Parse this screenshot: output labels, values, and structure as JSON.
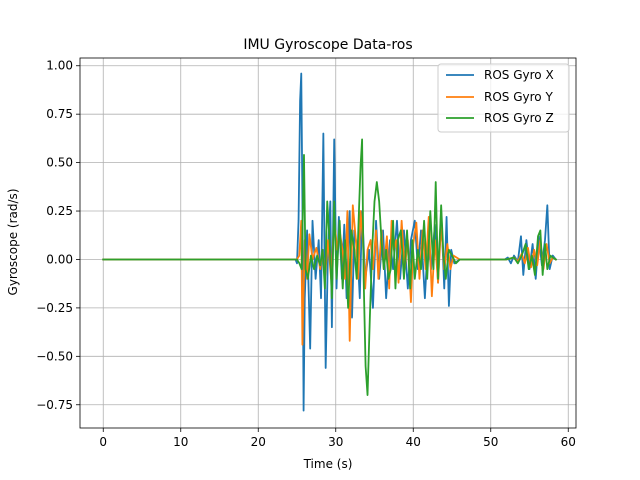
{
  "chart_data": {
    "type": "line",
    "title": "IMU Gyroscope Data-ros",
    "xlabel": "Time (s)",
    "ylabel": "Gyroscope (rad/s)",
    "xlim": [
      -3,
      61
    ],
    "ylim": [
      -0.87,
      1.04
    ],
    "xticks": [
      0,
      10,
      20,
      30,
      40,
      50,
      60
    ],
    "xtick_labels": [
      "0",
      "10",
      "20",
      "30",
      "40",
      "50",
      "60"
    ],
    "yticks": [
      -0.75,
      -0.5,
      -0.25,
      0.0,
      0.25,
      0.5,
      0.75,
      1.0
    ],
    "ytick_labels": [
      "−0.75",
      "−0.50",
      "−0.25",
      "0.00",
      "0.25",
      "0.50",
      "0.75",
      "1.00"
    ],
    "grid": true,
    "legend_position": "top-right",
    "series": [
      {
        "name": "ROS Gyro X",
        "color": "#1f77b4",
        "points": [
          [
            0,
            0
          ],
          [
            24.8,
            0
          ],
          [
            25.0,
            -0.02
          ],
          [
            25.2,
            0.2
          ],
          [
            25.4,
            0.82
          ],
          [
            25.55,
            0.96
          ],
          [
            25.7,
            0.3
          ],
          [
            25.85,
            -0.78
          ],
          [
            26.0,
            -0.2
          ],
          [
            26.3,
            0.15
          ],
          [
            26.7,
            -0.46
          ],
          [
            27.0,
            0.2
          ],
          [
            27.4,
            -0.1
          ],
          [
            27.8,
            0.1
          ],
          [
            28.1,
            -0.2
          ],
          [
            28.4,
            0.65
          ],
          [
            28.7,
            -0.56
          ],
          [
            29.0,
            0.05
          ],
          [
            29.3,
            0.3
          ],
          [
            29.5,
            -0.35
          ],
          [
            29.8,
            0.62
          ],
          [
            30.1,
            -0.15
          ],
          [
            30.4,
            0.22
          ],
          [
            30.8,
            -0.1
          ],
          [
            31.1,
            0.18
          ],
          [
            31.4,
            -0.2
          ],
          [
            31.8,
            0.25
          ],
          [
            32.1,
            -0.3
          ],
          [
            32.4,
            0.15
          ],
          [
            32.8,
            0.05
          ],
          [
            33.1,
            -0.2
          ],
          [
            33.4,
            0.25
          ],
          [
            33.8,
            -0.1
          ],
          [
            34.3,
            0.05
          ],
          [
            34.8,
            -0.25
          ],
          [
            35.2,
            0.2
          ],
          [
            35.6,
            -0.1
          ],
          [
            36.1,
            0.15
          ],
          [
            36.5,
            -0.2
          ],
          [
            37.0,
            0.1
          ],
          [
            37.4,
            -0.05
          ],
          [
            37.9,
            0.2
          ],
          [
            38.3,
            -0.1
          ],
          [
            38.8,
            0.15
          ],
          [
            39.3,
            -0.15
          ],
          [
            39.7,
            0.1
          ],
          [
            40.2,
            0.2
          ],
          [
            40.6,
            -0.05
          ],
          [
            41.0,
            0.15
          ],
          [
            41.5,
            -0.2
          ],
          [
            41.9,
            0.1
          ],
          [
            42.3,
            -0.05
          ],
          [
            42.8,
            0.18
          ],
          [
            43.2,
            -0.12
          ],
          [
            43.6,
            0.25
          ],
          [
            44.0,
            -0.15
          ],
          [
            44.3,
            0.22
          ],
          [
            44.6,
            -0.24
          ],
          [
            44.9,
            0.05
          ],
          [
            45.3,
            -0.02
          ],
          [
            46,
            0
          ],
          [
            51.8,
            0
          ],
          [
            52.2,
            0.01
          ],
          [
            52.6,
            -0.02
          ],
          [
            53.0,
            0.02
          ],
          [
            53.5,
            -0.01
          ],
          [
            53.9,
            0.12
          ],
          [
            54.2,
            -0.08
          ],
          [
            54.6,
            0.1
          ],
          [
            55.0,
            -0.05
          ],
          [
            55.4,
            0.08
          ],
          [
            55.8,
            -0.1
          ],
          [
            56.2,
            0.12
          ],
          [
            56.6,
            -0.03
          ],
          [
            57.0,
            0.1
          ],
          [
            57.3,
            0.28
          ],
          [
            57.6,
            -0.05
          ],
          [
            58.0,
            0.02
          ],
          [
            58.4,
            0
          ]
        ]
      },
      {
        "name": "ROS Gyro Y",
        "color": "#ff7f0e",
        "points": [
          [
            0,
            0
          ],
          [
            25.0,
            0
          ],
          [
            25.3,
            0.02
          ],
          [
            25.55,
            0.2
          ],
          [
            25.7,
            -0.44
          ],
          [
            26.0,
            0.1
          ],
          [
            26.3,
            -0.1
          ],
          [
            26.6,
            0.13
          ],
          [
            27.0,
            0
          ],
          [
            27.5,
            0.06
          ],
          [
            28.0,
            -0.05
          ],
          [
            28.3,
            0.05
          ],
          [
            28.6,
            -0.1
          ],
          [
            29.0,
            0.1
          ],
          [
            29.4,
            -0.1
          ],
          [
            29.8,
            0.2
          ],
          [
            30.2,
            0.05
          ],
          [
            30.5,
            0.15
          ],
          [
            30.9,
            0.04
          ],
          [
            31.2,
            -0.1
          ],
          [
            31.5,
            0.25
          ],
          [
            31.8,
            -0.42
          ],
          [
            32.2,
            0.28
          ],
          [
            32.6,
            0.1
          ],
          [
            32.9,
            -0.1
          ],
          [
            33.2,
            0.25
          ],
          [
            33.5,
            0.1
          ],
          [
            33.8,
            -0.15
          ],
          [
            34.1,
            0.05
          ],
          [
            34.5,
            0.1
          ],
          [
            34.8,
            -0.05
          ],
          [
            35.2,
            0.15
          ],
          [
            35.5,
            -0.1
          ],
          [
            35.9,
            0.15
          ],
          [
            36.2,
            -0.05
          ],
          [
            36.6,
            0.12
          ],
          [
            36.9,
            -0.15
          ],
          [
            37.2,
            0.2
          ],
          [
            37.5,
            0.05
          ],
          [
            37.8,
            0.1
          ],
          [
            38.1,
            -0.12
          ],
          [
            38.5,
            0.2
          ],
          [
            38.9,
            -0.05
          ],
          [
            39.3,
            0.1
          ],
          [
            39.7,
            -0.22
          ],
          [
            40.0,
            0.08
          ],
          [
            40.4,
            0.19
          ],
          [
            40.8,
            -0.1
          ],
          [
            41.2,
            0.15
          ],
          [
            41.6,
            -0.05
          ],
          [
            42.0,
            0.22
          ],
          [
            42.4,
            -0.19
          ],
          [
            42.8,
            0.1
          ],
          [
            43.2,
            -0.12
          ],
          [
            43.6,
            0.18
          ],
          [
            44.0,
            -0.05
          ],
          [
            44.4,
            0.08
          ],
          [
            44.8,
            -0.05
          ],
          [
            45.2,
            0.02
          ],
          [
            46,
            0
          ],
          [
            52,
            0
          ],
          [
            53.0,
            0.01
          ],
          [
            53.5,
            -0.01
          ],
          [
            54.0,
            0.03
          ],
          [
            54.4,
            -0.02
          ],
          [
            54.8,
            0.06
          ],
          [
            55.2,
            -0.04
          ],
          [
            55.6,
            0.05
          ],
          [
            56.0,
            -0.03
          ],
          [
            56.4,
            0.1
          ],
          [
            56.8,
            -0.05
          ],
          [
            57.2,
            0.08
          ],
          [
            57.6,
            -0.02
          ],
          [
            58.0,
            0.01
          ],
          [
            58.4,
            0
          ]
        ]
      },
      {
        "name": "ROS Gyro Z",
        "color": "#2ca02c",
        "points": [
          [
            0,
            0
          ],
          [
            25.0,
            0
          ],
          [
            25.3,
            -0.02
          ],
          [
            25.6,
            -0.05
          ],
          [
            25.9,
            0.54
          ],
          [
            26.1,
            -0.05
          ],
          [
            26.4,
            -0.1
          ],
          [
            26.8,
            0.02
          ],
          [
            27.2,
            -0.05
          ],
          [
            27.6,
            0.02
          ],
          [
            28.0,
            -0.03
          ],
          [
            28.3,
            0.05
          ],
          [
            28.6,
            -0.15
          ],
          [
            28.9,
            0.3
          ],
          [
            29.2,
            0.1
          ],
          [
            29.5,
            -0.2
          ],
          [
            29.8,
            0.3
          ],
          [
            30.1,
            -0.1
          ],
          [
            30.5,
            0.2
          ],
          [
            30.9,
            -0.15
          ],
          [
            31.2,
            0.1
          ],
          [
            31.6,
            -0.25
          ],
          [
            32.0,
            0.15
          ],
          [
            32.4,
            0.05
          ],
          [
            32.7,
            -0.1
          ],
          [
            32.95,
            0.2
          ],
          [
            33.2,
            0.48
          ],
          [
            33.4,
            0.62
          ],
          [
            33.6,
            -0.1
          ],
          [
            33.85,
            -0.55
          ],
          [
            34.1,
            -0.7
          ],
          [
            34.4,
            -0.3
          ],
          [
            34.7,
            0.05
          ],
          [
            35.0,
            0.3
          ],
          [
            35.3,
            0.4
          ],
          [
            35.6,
            0.3
          ],
          [
            35.9,
            0.1
          ],
          [
            36.2,
            -0.05
          ],
          [
            36.5,
            0.05
          ],
          [
            36.8,
            -0.1
          ],
          [
            37.1,
            -0.05
          ],
          [
            37.4,
            0.2
          ],
          [
            37.7,
            -0.15
          ],
          [
            38.0,
            0.1
          ],
          [
            38.4,
            0.15
          ],
          [
            38.8,
            -0.1
          ],
          [
            39.2,
            0.15
          ],
          [
            39.6,
            -0.15
          ],
          [
            39.9,
            0.1
          ],
          [
            40.2,
            -0.1
          ],
          [
            40.6,
            0.05
          ],
          [
            41.0,
            -0.05
          ],
          [
            41.4,
            0.2
          ],
          [
            41.8,
            -0.1
          ],
          [
            42.2,
            0.25
          ],
          [
            42.6,
            -0.05
          ],
          [
            42.9,
            0.4
          ],
          [
            43.2,
            -0.1
          ],
          [
            43.6,
            0.28
          ],
          [
            43.9,
            0.02
          ],
          [
            44.2,
            -0.1
          ],
          [
            44.6,
            0.05
          ],
          [
            45.0,
            0.02
          ],
          [
            45.5,
            -0.02
          ],
          [
            46,
            0
          ],
          [
            52,
            0
          ],
          [
            53.0,
            0.01
          ],
          [
            53.5,
            -0.02
          ],
          [
            54.0,
            0.02
          ],
          [
            54.5,
            0.08
          ],
          [
            54.9,
            -0.05
          ],
          [
            55.3,
            0.02
          ],
          [
            55.7,
            -0.08
          ],
          [
            56.1,
            0.12
          ],
          [
            56.4,
            0.15
          ],
          [
            56.7,
            -0.08
          ],
          [
            57.0,
            0.08
          ],
          [
            57.3,
            -0.05
          ],
          [
            57.7,
            0.02
          ],
          [
            58.0,
            0.01
          ],
          [
            58.4,
            0
          ]
        ]
      }
    ]
  }
}
